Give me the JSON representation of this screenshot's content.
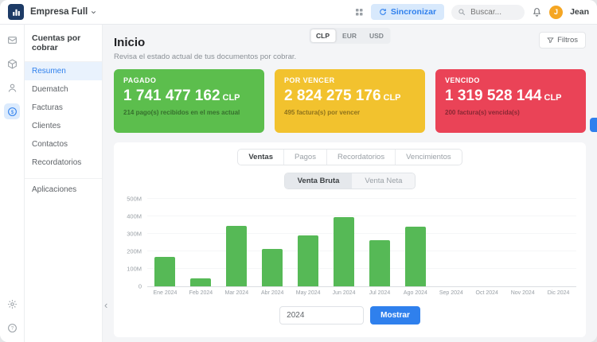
{
  "topbar": {
    "company": "Empresa Full",
    "sync_label": "Sincronizar",
    "search_placeholder": "Buscar...",
    "user_initial": "J",
    "user_name": "Jean"
  },
  "sidebar": {
    "title": "Cuentas por cobrar",
    "items": [
      "Resumen",
      "Duematch",
      "Facturas",
      "Clientes",
      "Contactos",
      "Recordatorios"
    ],
    "footer_item": "Aplicaciones"
  },
  "main": {
    "title": "Inicio",
    "subtitle": "Revisa el estado actual de tus documentos por cobrar.",
    "currencies": [
      "CLP",
      "EUR",
      "USD"
    ],
    "active_currency": "CLP",
    "filters_label": "Filtros",
    "cards": [
      {
        "title": "PAGADO",
        "amount": "1 741 477 162",
        "currency": "CLP",
        "caption": "214 pago(s) recibidos en el mes actual",
        "color": "#5cbe4d"
      },
      {
        "title": "POR VENCER",
        "amount": "2 824 275 176",
        "currency": "CLP",
        "caption": "495 factura(s) por vencer",
        "color": "#f2c22e"
      },
      {
        "title": "VENCIDO",
        "amount": "1 319 528 144",
        "currency": "CLP",
        "caption": "200 factura(s) vencida(s)",
        "color": "#ea4357"
      }
    ],
    "tabs": [
      "Ventas",
      "Pagos",
      "Recordatorios",
      "Vencimientos"
    ],
    "active_tab": "Ventas",
    "subtabs": [
      "Venta Bruta",
      "Venta Neta"
    ],
    "active_subtab": "Venta Bruta",
    "year_value": "2024",
    "show_label": "Mostrar"
  },
  "icons": {
    "collapse_chevron": "‹"
  },
  "chart_data": {
    "type": "bar",
    "categories": [
      "Ene 2024",
      "Feb 2024",
      "Mar 2024",
      "Abr 2024",
      "May 2024",
      "Jun 2024",
      "Jul 2024",
      "Ago 2024",
      "Sep 2024",
      "Oct 2024",
      "Nov 2024",
      "Dic 2024"
    ],
    "values": [
      168,
      47,
      345,
      212,
      290,
      397,
      263,
      342,
      0,
      0,
      0,
      0
    ],
    "unit": "M",
    "ymax": 500,
    "ytick_values": [
      0,
      100,
      200,
      300,
      400,
      500
    ],
    "ytick_labels": [
      "0",
      "100M",
      "200M",
      "300M",
      "400M",
      "500M"
    ],
    "bar_color": "#56b956",
    "grid": false,
    "legend": false
  }
}
